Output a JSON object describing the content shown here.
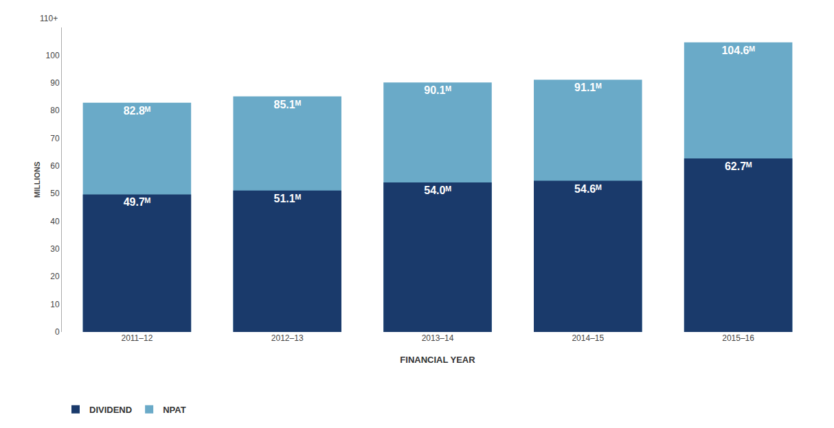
{
  "chart_data": {
    "type": "bar",
    "categories": [
      "2011–12",
      "2012–13",
      "2013–14",
      "2014–15",
      "2015–16"
    ],
    "series": [
      {
        "name": "DIVIDEND",
        "color": "#1a3a6b",
        "values": [
          49.7,
          51.1,
          54.0,
          54.6,
          62.7
        ],
        "value_labels": [
          "49.7ᴹ",
          "51.1ᴹ",
          "54.0ᴹ",
          "54.6ᴹ",
          "62.7ᴹ"
        ]
      },
      {
        "name": "NPAT",
        "color": "#6aaac8",
        "values": [
          82.8,
          85.1,
          90.1,
          91.1,
          104.6
        ],
        "value_labels": [
          "82.8ᴹ",
          "85.1ᴹ",
          "90.1ᴹ",
          "91.1ᴹ",
          "104.6ᴹ"
        ]
      }
    ],
    "x_label": "FINANCIAL YEAR",
    "y_label": "MILLIONS",
    "ylim": [
      0,
      110
    ],
    "yticks": [
      0,
      10,
      20,
      30,
      40,
      50,
      60,
      70,
      80,
      90,
      100
    ],
    "annotations": [
      "110+"
    ],
    "grid": false,
    "legend": "lower left",
    "data_labels": true
  }
}
